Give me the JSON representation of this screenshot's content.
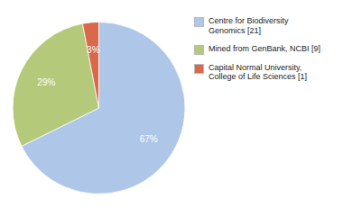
{
  "chart_data": {
    "type": "pie",
    "categories": [
      "Centre for Biodiversity\nGenomics [21]",
      "Mined from GenBank, NCBI [9]",
      "Capital Normal University,\nCollege of Life Sciences [1]"
    ],
    "values": [
      67,
      29,
      3
    ],
    "value_labels": [
      "67%",
      "29%",
      "3%"
    ],
    "colors": [
      "#aec6e8",
      "#b5c97a",
      "#d9694a"
    ],
    "data_labels": true,
    "legend": "right"
  }
}
